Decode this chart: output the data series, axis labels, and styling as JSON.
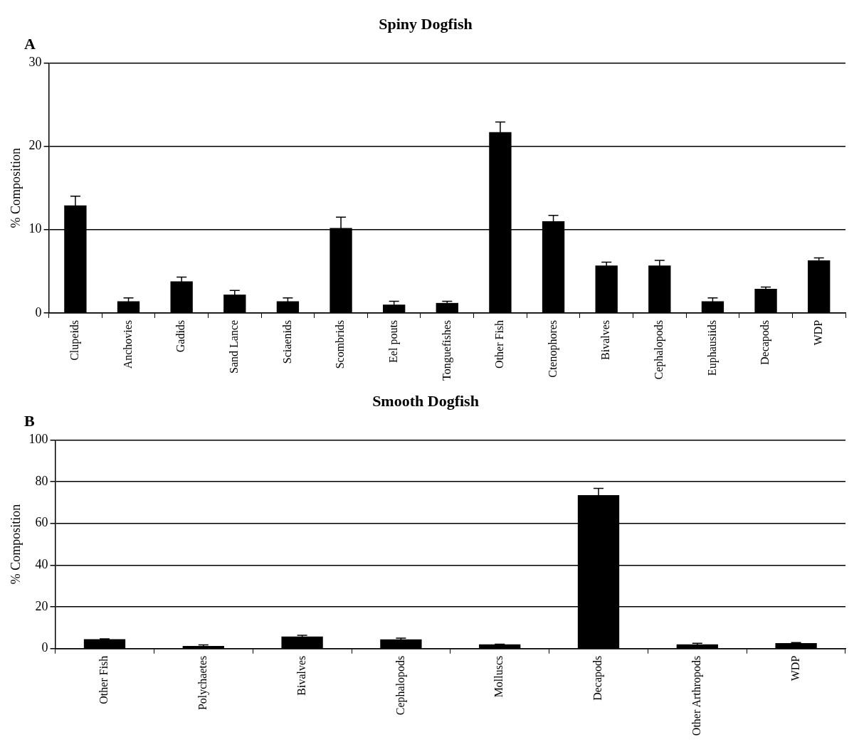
{
  "chart_data": [
    {
      "type": "bar",
      "title": "Spiny Dogfish",
      "ylabel": "% Composition",
      "annotations": [
        "A"
      ],
      "categories": [
        "Clupeids",
        "Anchovies",
        "Gadids",
        "Sand Lance",
        "Sciaenids",
        "Scombrids",
        "Eel pouts",
        "Tonguefishes",
        "Other Fish",
        "Ctenophores",
        "Bivalves",
        "Cephalopods",
        "Euphausiids",
        "Decapods",
        "WDP"
      ],
      "values": [
        12.9,
        1.4,
        3.8,
        2.2,
        1.4,
        10.2,
        1.0,
        1.2,
        21.7,
        11.0,
        5.7,
        5.7,
        1.4,
        2.9,
        6.3
      ],
      "errors": [
        1.1,
        0.4,
        0.5,
        0.5,
        0.4,
        1.3,
        0.4,
        0.2,
        1.2,
        0.7,
        0.4,
        0.6,
        0.4,
        0.2,
        0.3
      ],
      "color": "#000000",
      "ylim": [
        0,
        30
      ],
      "yticks": [
        0,
        10,
        20,
        30
      ],
      "grid": "y",
      "legend": false
    },
    {
      "type": "bar",
      "title": "Smooth Dogfish",
      "ylabel": "% Composition",
      "annotations": [
        "B"
      ],
      "categories": [
        "Other Fish",
        "Polychaetes",
        "Bivalves",
        "Cephalopods",
        "Molluscs",
        "Decapods",
        "Other Arthropods",
        "WDP"
      ],
      "values": [
        4.5,
        1.3,
        5.8,
        4.4,
        2.0,
        73.5,
        2.0,
        2.6
      ],
      "errors": [
        0.2,
        0.5,
        0.6,
        0.6,
        0.1,
        3.3,
        0.5,
        0.3
      ],
      "color": "#000000",
      "ylim": [
        0,
        100
      ],
      "yticks": [
        0,
        20,
        40,
        60,
        80,
        100
      ],
      "grid": "y",
      "legend": false
    }
  ]
}
